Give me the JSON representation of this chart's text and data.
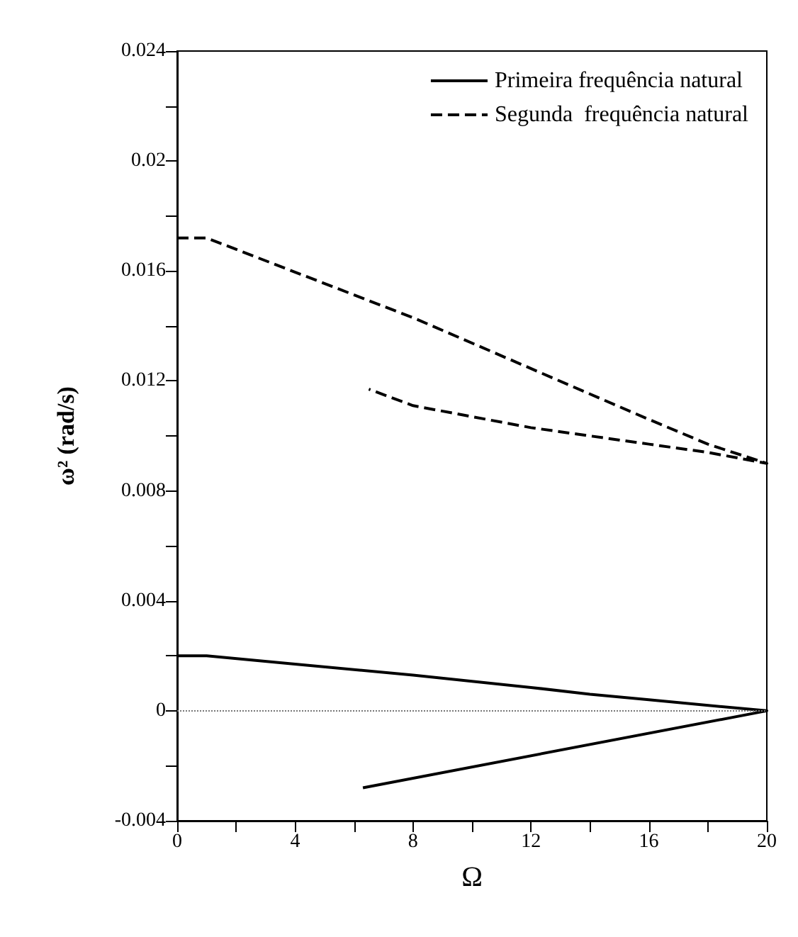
{
  "chart_data": {
    "type": "line",
    "xlabel": "Ω",
    "ylabel": "ω² (rad/s)",
    "xlim": [
      0,
      20
    ],
    "ylim": [
      -0.004,
      0.024
    ],
    "xticks": [
      0,
      {
        "value": 2,
        "label": null
      },
      4,
      {
        "value": 6,
        "label": null
      },
      8,
      {
        "value": 10,
        "label": null
      },
      12,
      {
        "value": 14,
        "label": null
      },
      16,
      {
        "value": 18,
        "label": null
      },
      20
    ],
    "yticks": [
      -0.004,
      {
        "value": -0.002,
        "label": null
      },
      0,
      {
        "value": 0.002,
        "label": null
      },
      0.004,
      {
        "value": 0.006,
        "label": null
      },
      0.008,
      {
        "value": 0.01,
        "label": null
      },
      0.012,
      {
        "value": 0.014,
        "label": null
      },
      0.016,
      {
        "value": 0.018,
        "label": null
      },
      0.02,
      {
        "value": 0.022,
        "label": null
      },
      0.024
    ],
    "grid": false,
    "legend": "top right",
    "marker": "none",
    "ref_lines": [
      {
        "axis": "y",
        "value": 0,
        "color": "#777777",
        "line_style": "dotted"
      }
    ],
    "series": [
      {
        "name": "Primeira frequência natural",
        "color": "#000000",
        "line_style": "solid",
        "x": [
          0,
          1,
          4,
          8,
          12,
          14,
          16,
          20,
          6.3
        ],
        "values": [
          0.002,
          0.002,
          0.0017,
          0.0013,
          0.00085,
          0.0006,
          0.0004,
          0,
          -0.0028
        ]
      },
      {
        "name": "Segunda  frequência natural",
        "color": "#000000",
        "line_style": "dashed",
        "x": [
          0,
          1,
          8,
          16,
          18,
          20,
          18,
          16,
          12,
          8,
          6.5
        ],
        "values": [
          0.0172,
          0.0172,
          0.0143,
          0.0106,
          0.0097,
          0.009,
          0.0094,
          0.0097,
          0.0103,
          0.0111,
          0.0117
        ]
      }
    ]
  }
}
